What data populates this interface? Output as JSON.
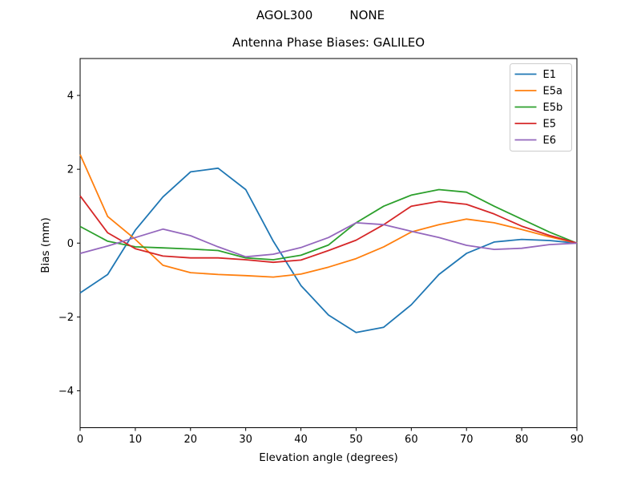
{
  "figure": {
    "suptitle_left": "AGOL300",
    "suptitle_right": "NONE",
    "background": "#ffffff",
    "text_color": "#000000",
    "spine_color": "#000000",
    "legend_border_color": "#cccccc"
  },
  "chart_data": {
    "type": "line",
    "title": "Antenna Phase Biases: GALILEO",
    "xlabel": "Elevation angle (degrees)",
    "ylabel": "Bias (mm)",
    "xlim": [
      0,
      90
    ],
    "ylim": [
      -5,
      5
    ],
    "xticks": [
      0,
      10,
      20,
      30,
      40,
      50,
      60,
      70,
      80,
      90
    ],
    "yticks": [
      -4,
      -2,
      0,
      2,
      4
    ],
    "grid": false,
    "legend_position": "upper right",
    "x": [
      0,
      5,
      10,
      15,
      20,
      25,
      30,
      35,
      40,
      45,
      50,
      55,
      60,
      65,
      70,
      75,
      80,
      85,
      90
    ],
    "series": [
      {
        "name": "E1",
        "color": "#1f77b4",
        "values": [
          -1.35,
          -0.85,
          0.35,
          1.25,
          1.93,
          2.03,
          1.45,
          0.05,
          -1.15,
          -1.95,
          -2.42,
          -2.28,
          -1.67,
          -0.85,
          -0.28,
          0.03,
          0.1,
          0.07,
          0.0
        ]
      },
      {
        "name": "E5a",
        "color": "#ff7f0e",
        "values": [
          2.4,
          0.72,
          0.1,
          -0.6,
          -0.8,
          -0.85,
          -0.88,
          -0.92,
          -0.84,
          -0.65,
          -0.42,
          -0.1,
          0.3,
          0.5,
          0.65,
          0.55,
          0.37,
          0.17,
          0.0
        ]
      },
      {
        "name": "E5b",
        "color": "#2ca02c",
        "values": [
          0.45,
          0.05,
          -0.1,
          -0.13,
          -0.16,
          -0.2,
          -0.4,
          -0.45,
          -0.33,
          -0.05,
          0.55,
          1.0,
          1.3,
          1.45,
          1.38,
          1.0,
          0.65,
          0.3,
          0.0
        ]
      },
      {
        "name": "E5",
        "color": "#d62728",
        "values": [
          1.28,
          0.28,
          -0.15,
          -0.35,
          -0.4,
          -0.4,
          -0.45,
          -0.52,
          -0.46,
          -0.2,
          0.08,
          0.5,
          1.0,
          1.13,
          1.05,
          0.79,
          0.46,
          0.21,
          0.0
        ]
      },
      {
        "name": "E6",
        "color": "#9467bd",
        "values": [
          -0.28,
          -0.08,
          0.15,
          0.38,
          0.2,
          -0.1,
          -0.37,
          -0.3,
          -0.12,
          0.15,
          0.55,
          0.5,
          0.32,
          0.15,
          -0.06,
          -0.17,
          -0.14,
          -0.04,
          0.0
        ]
      }
    ]
  }
}
